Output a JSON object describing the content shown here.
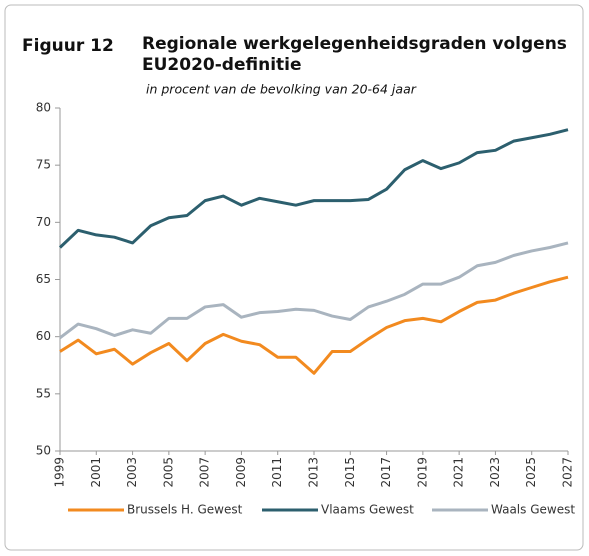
{
  "chart_data": {
    "type": "line",
    "figure_label": "Figuur 12",
    "title": "Regionale werkgelegenheidsgraden volgens EU2020-definitie",
    "subtitle": "in procent van de bevolking van 20-64 jaar",
    "x": [
      1999,
      2000,
      2001,
      2002,
      2003,
      2004,
      2005,
      2006,
      2007,
      2008,
      2009,
      2010,
      2011,
      2012,
      2013,
      2014,
      2015,
      2016,
      2017,
      2018,
      2019,
      2020,
      2021,
      2022,
      2023,
      2024,
      2025,
      2026,
      2027
    ],
    "xlim": [
      1999,
      2027
    ],
    "xticks": [
      1999,
      2001,
      2003,
      2005,
      2007,
      2009,
      2011,
      2013,
      2015,
      2017,
      2019,
      2021,
      2023,
      2025,
      2027
    ],
    "ylim": [
      50,
      80
    ],
    "yticks": [
      50,
      55,
      60,
      65,
      70,
      75,
      80
    ],
    "grid": false,
    "legend": "bottom",
    "series": [
      {
        "name": "Brussels H. Gewest",
        "color": "#f28a1f",
        "values": [
          58.7,
          59.7,
          58.5,
          58.9,
          57.6,
          58.6,
          59.4,
          57.9,
          59.4,
          60.2,
          59.6,
          59.3,
          58.2,
          58.2,
          56.8,
          58.7,
          58.7,
          59.8,
          60.8,
          61.4,
          61.6,
          61.3,
          62.2,
          63.0,
          63.2,
          63.8,
          64.3,
          64.8,
          65.2
        ]
      },
      {
        "name": "Vlaams Gewest",
        "color": "#2c5f6e",
        "values": [
          67.8,
          69.3,
          68.9,
          68.7,
          68.2,
          69.7,
          70.4,
          70.6,
          71.9,
          72.3,
          71.5,
          72.1,
          71.8,
          71.5,
          71.9,
          71.9,
          71.9,
          72.0,
          72.9,
          74.6,
          75.4,
          74.7,
          75.2,
          76.1,
          76.3,
          77.1,
          77.4,
          77.7,
          78.1
        ]
      },
      {
        "name": "Waals Gewest",
        "color": "#a9b4bf",
        "values": [
          59.9,
          61.1,
          60.7,
          60.1,
          60.6,
          60.3,
          61.6,
          61.6,
          62.6,
          62.8,
          61.7,
          62.1,
          62.2,
          62.4,
          62.3,
          61.8,
          61.5,
          62.6,
          63.1,
          63.7,
          64.6,
          64.6,
          65.2,
          66.2,
          66.5,
          67.1,
          67.5,
          67.8,
          68.2
        ]
      }
    ]
  }
}
